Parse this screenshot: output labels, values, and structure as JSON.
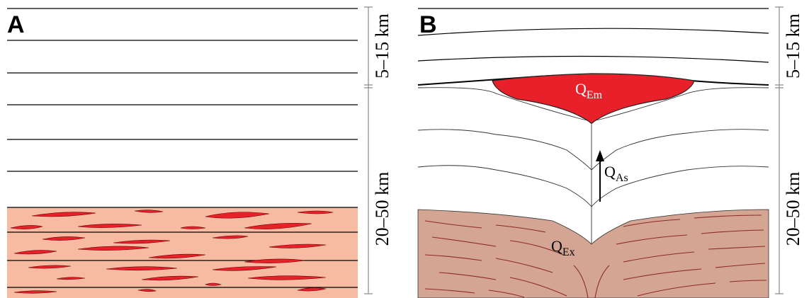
{
  "panels": [
    {
      "label": "A",
      "scale": {
        "upper": "5–15 km",
        "lower": "20–50 km"
      }
    },
    {
      "label": "B",
      "scale": {
        "upper": "5–15 km",
        "lower": "20–50 km"
      },
      "annotations": [
        {
          "base": "Q",
          "sub": "Em"
        },
        {
          "base": "Q",
          "sub": "As"
        },
        {
          "base": "Q",
          "sub": "Ex"
        }
      ]
    }
  ]
}
